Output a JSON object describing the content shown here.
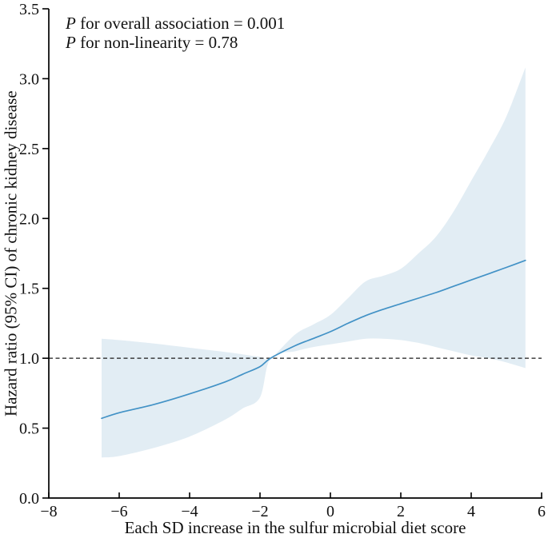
{
  "figure": {
    "annotations": [
      {
        "prefix": "P",
        "text": " for overall association = 0.001"
      },
      {
        "prefix": "P",
        "text": " for non-linearity = 0.78"
      }
    ]
  },
  "chart_data": {
    "type": "line",
    "title": "",
    "xlabel": "Each SD increase in the sulfur microbial diet score",
    "ylabel": "Hazard ratio (95% CI) of chronic kidney disease",
    "xlim": [
      -8,
      6
    ],
    "ylim": [
      0,
      3.5
    ],
    "x_tick_values": [
      -8,
      -6,
      -4,
      -2,
      0,
      2,
      4,
      6
    ],
    "x_tick_labels": [
      "−8",
      "−6",
      "−4",
      "−2",
      "0",
      "2",
      "4",
      "6"
    ],
    "y_tick_values": [
      0,
      0.5,
      1,
      1.5,
      2,
      2.5,
      3,
      3.5
    ],
    "y_tick_labels": [
      "0.0",
      "0.5",
      "1.0",
      "1.5",
      "2.0",
      "2.5",
      "3.0",
      "3.5"
    ],
    "grid": false,
    "legend": "none",
    "p_overall_association": "0.001",
    "p_non_linearity": "0.78",
    "reference_line": {
      "y": 1.0,
      "style": "dashed",
      "color": "#1a1a1a"
    },
    "colors": {
      "spline_line": "#4292c6",
      "ci_band": "#e2edf4",
      "axis": "#000000"
    },
    "series": [
      {
        "name": "hazard_ratio_spline",
        "x": [
          -6.5,
          -6,
          -5,
          -4,
          -3,
          -2.5,
          -2,
          -1.7,
          -1,
          -0.5,
          0,
          0.5,
          1,
          1.5,
          2,
          2.5,
          3,
          3.5,
          4,
          4.5,
          5,
          5.54
        ],
        "y": [
          0.57,
          0.61,
          0.67,
          0.745,
          0.83,
          0.885,
          0.94,
          1.0,
          1.09,
          1.14,
          1.19,
          1.25,
          1.305,
          1.35,
          1.39,
          1.43,
          1.47,
          1.515,
          1.56,
          1.605,
          1.65,
          1.7
        ]
      },
      {
        "name": "ci_upper",
        "x": [
          -6.5,
          -6,
          -5,
          -4,
          -3,
          -2.5,
          -2,
          -1.7,
          -1,
          -0.5,
          0,
          0.5,
          1,
          1.5,
          2,
          2.5,
          3,
          3.5,
          4,
          4.5,
          5,
          5.54
        ],
        "y": [
          1.14,
          1.13,
          1.105,
          1.075,
          1.045,
          1.028,
          1.01,
          1.0,
          1.17,
          1.24,
          1.31,
          1.43,
          1.55,
          1.59,
          1.64,
          1.75,
          1.87,
          2.05,
          2.27,
          2.49,
          2.73,
          3.08
        ]
      },
      {
        "name": "ci_lower",
        "x": [
          -6.5,
          -6,
          -5,
          -4,
          -3,
          -2.5,
          -2,
          -1.7,
          -1,
          -0.5,
          0,
          0.5,
          1,
          1.5,
          2,
          2.5,
          3,
          3.5,
          4,
          4.5,
          5,
          5.54
        ],
        "y": [
          0.29,
          0.3,
          0.36,
          0.44,
          0.56,
          0.64,
          0.72,
          1.0,
          1.05,
          1.08,
          1.1,
          1.12,
          1.14,
          1.14,
          1.13,
          1.11,
          1.08,
          1.05,
          1.02,
          1.0,
          0.97,
          0.93
        ]
      }
    ]
  }
}
